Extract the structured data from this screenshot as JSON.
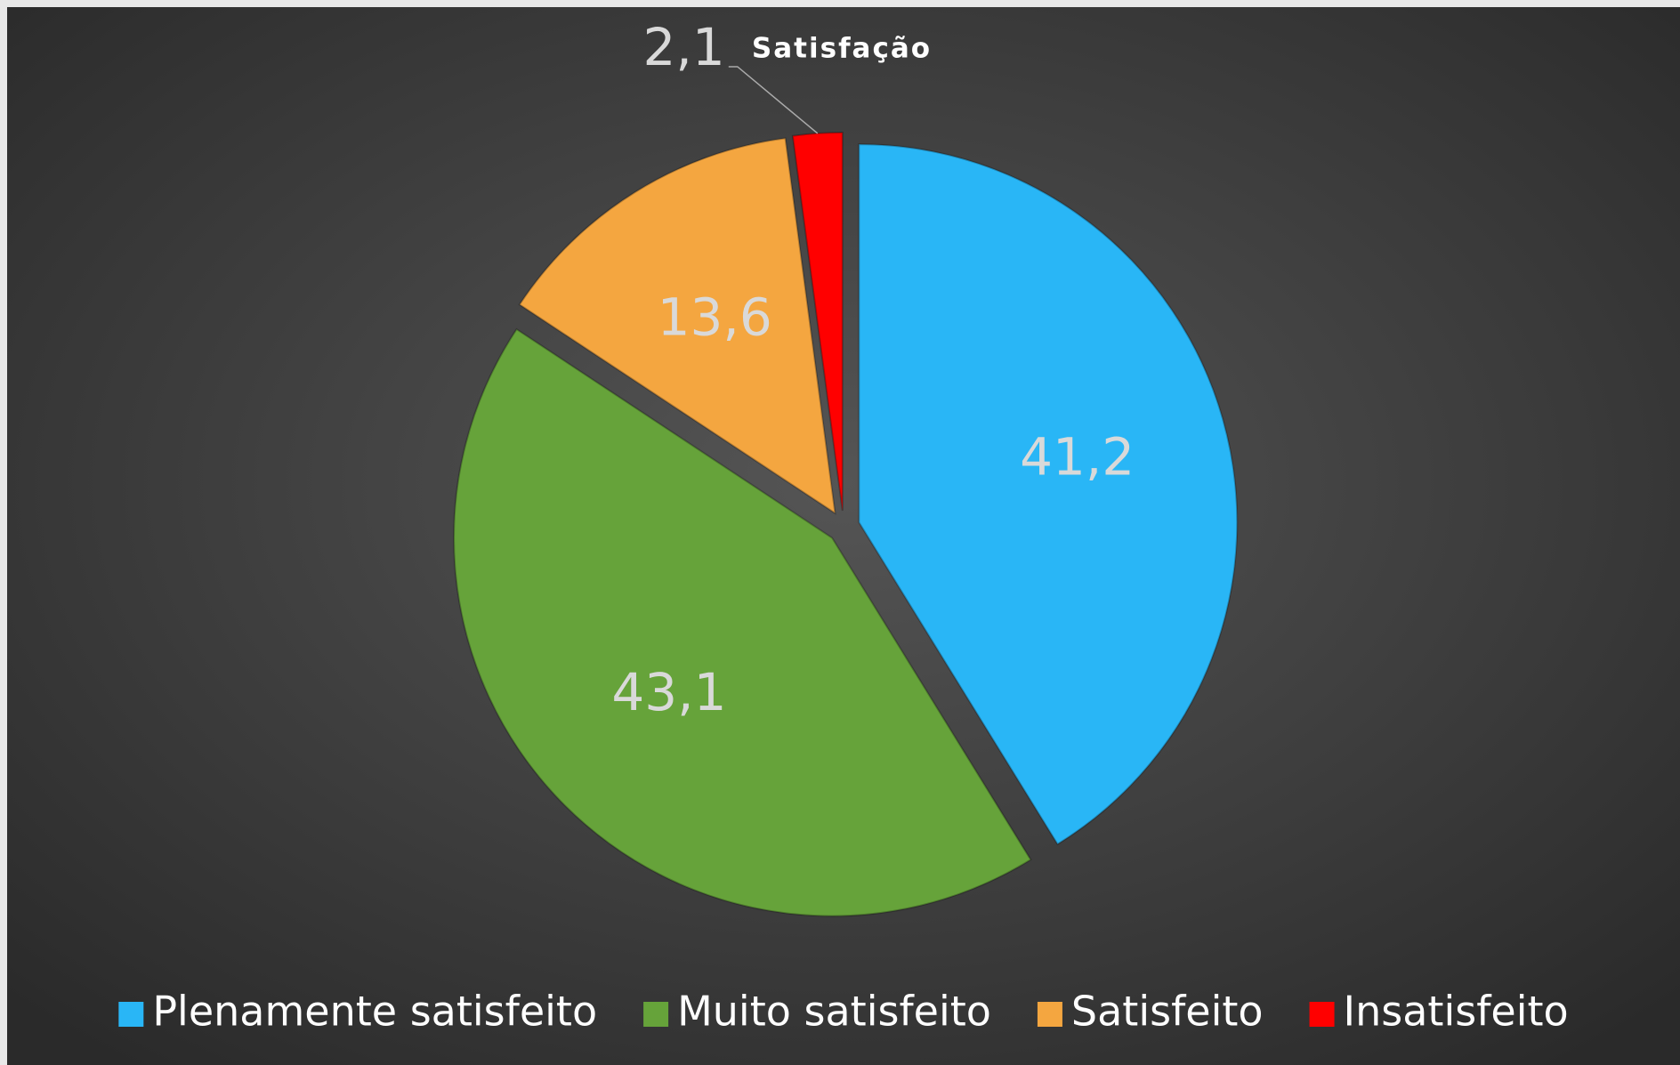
{
  "chart_data": {
    "type": "pie",
    "title": "Satisfação",
    "categories": [
      "Plenamente satisfeito",
      "Muito satisfeito",
      "Satisfeito",
      "Insatisfeito"
    ],
    "values": [
      41.2,
      43.1,
      13.6,
      2.1
    ],
    "value_labels": [
      "41,2",
      "43,1",
      "13,6",
      "2,1"
    ],
    "colors": [
      "#29b6f6",
      "#66a33a",
      "#f4a640",
      "#ff0000"
    ],
    "legend": "bottom"
  }
}
